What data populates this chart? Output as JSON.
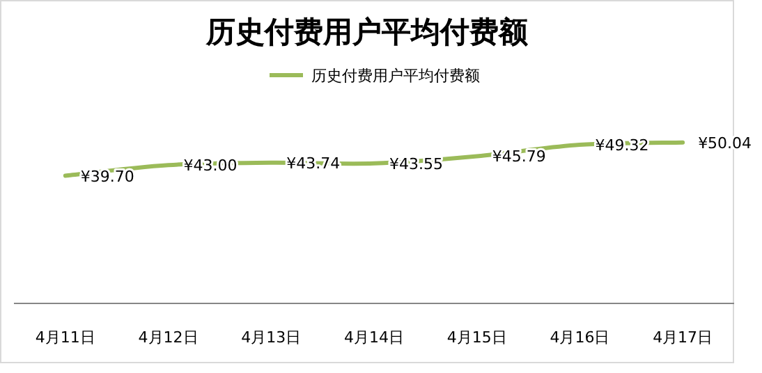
{
  "chart_data": {
    "type": "line",
    "title": "历史付费用户平均付费额",
    "categories": [
      "4月11日",
      "4月12日",
      "4月13日",
      "4月14日",
      "4月15日",
      "4月16日",
      "4月17日"
    ],
    "series": [
      {
        "name": "历史付费用户平均付费额",
        "color": "#9bbb59",
        "values": [
          39.7,
          43.0,
          43.74,
          43.55,
          45.79,
          49.32,
          50.04
        ],
        "value_labels": [
          "¥39.70",
          "¥43.00",
          "¥43.74",
          "¥43.55",
          "¥45.79",
          "¥49.32",
          "¥50.04"
        ]
      }
    ],
    "legend": "top",
    "marker": "none",
    "line_style": "solid",
    "tick_labels": "x"
  }
}
